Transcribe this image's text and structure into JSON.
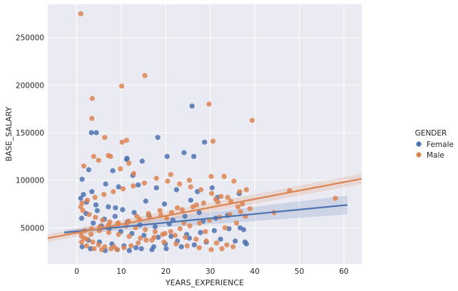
{
  "chart_data": {
    "type": "scatter",
    "xlabel": "YEARS_EXPERIENCE",
    "ylabel": "BASE_SALARY",
    "xlim": [
      -6.5,
      64
    ],
    "ylim": [
      12000,
      285000
    ],
    "xticks": [
      0,
      10,
      20,
      30,
      40,
      50,
      60
    ],
    "yticks": [
      50000,
      100000,
      150000,
      200000,
      250000
    ],
    "grid": true,
    "legend": {
      "title": "GENDER",
      "position": "right"
    },
    "colors": {
      "Female": "#4c72b0",
      "Male": "#dd8452",
      "background": "#eaeaf2",
      "grid": "#ffffff"
    },
    "series": [
      {
        "name": "Female",
        "points": [
          [
            18.2,
            145000
          ],
          [
            28.7,
            140000
          ],
          [
            25.9,
            178000
          ],
          [
            20.3,
            125000
          ],
          [
            24.1,
            129000
          ],
          [
            26.3,
            125000
          ],
          [
            12.6,
            105000
          ],
          [
            14.7,
            120000
          ],
          [
            11.2,
            122000
          ],
          [
            11.3,
            123000
          ],
          [
            8.1,
            110000
          ],
          [
            3.3,
            150000
          ],
          [
            4.4,
            150000
          ],
          [
            2.7,
            111000
          ],
          [
            1.2,
            101000
          ],
          [
            6.5,
            96000
          ],
          [
            9.4,
            93000
          ],
          [
            13.8,
            95000
          ],
          [
            17.9,
            92000
          ],
          [
            22.4,
            90000
          ],
          [
            27.1,
            88000
          ],
          [
            30.4,
            92000
          ],
          [
            36.5,
            86000
          ],
          [
            31.6,
            82000
          ],
          [
            25.6,
            79000
          ],
          [
            19.7,
            75000
          ],
          [
            15.5,
            78000
          ],
          [
            8.7,
            71000
          ],
          [
            4.6,
            68000
          ],
          [
            2.1,
            65000
          ],
          [
            1.1,
            60000
          ],
          [
            3.7,
            55000
          ],
          [
            5.5,
            52000
          ],
          [
            7.3,
            49000
          ],
          [
            9.9,
            46000
          ],
          [
            12.4,
            44000
          ],
          [
            15.1,
            42000
          ],
          [
            18.3,
            40000
          ],
          [
            21.2,
            41000
          ],
          [
            24.7,
            43000
          ],
          [
            27.8,
            45000
          ],
          [
            30.9,
            47000
          ],
          [
            34.2,
            49000
          ],
          [
            37.5,
            48000
          ],
          [
            38.1,
            33000
          ],
          [
            35.6,
            36000
          ],
          [
            32.3,
            38000
          ],
          [
            29.1,
            35000
          ],
          [
            26.4,
            32000
          ],
          [
            23.5,
            30000
          ],
          [
            20.1,
            28000
          ],
          [
            16.9,
            27000
          ],
          [
            13.3,
            29000
          ],
          [
            10.6,
            31000
          ],
          [
            7.9,
            33000
          ],
          [
            5.1,
            35000
          ],
          [
            2.6,
            37000
          ],
          [
            1.2,
            30000
          ],
          [
            3.1,
            28000
          ],
          [
            6.4,
            26000
          ],
          [
            9.1,
            27000
          ],
          [
            11.8,
            26000
          ],
          [
            14.5,
            28000
          ],
          [
            17.3,
            30000
          ],
          [
            19.9,
            33000
          ],
          [
            22.6,
            36000
          ],
          [
            25.3,
            39000
          ],
          [
            28.4,
            57000
          ],
          [
            31.2,
            60000
          ],
          [
            33.9,
            63000
          ],
          [
            36.7,
            50000
          ],
          [
            37.8,
            35000
          ],
          [
            21.6,
            58000
          ],
          [
            16.2,
            63000
          ],
          [
            12.9,
            66000
          ],
          [
            10.3,
            69000
          ],
          [
            7.1,
            72000
          ],
          [
            4.3,
            74000
          ],
          [
            2.2,
            77000
          ],
          [
            0.9,
            81000
          ],
          [
            1.5,
            85000
          ],
          [
            3.4,
            88000
          ],
          [
            6.2,
            59000
          ],
          [
            8.6,
            62000
          ],
          [
            11.4,
            56000
          ],
          [
            14.2,
            53000
          ],
          [
            17.6,
            51000
          ],
          [
            20.8,
            54000
          ],
          [
            24.3,
            62000
          ],
          [
            27.5,
            66000
          ]
        ]
      },
      {
        "name": "Male",
        "points": [
          [
            0.9,
            275000
          ],
          [
            15.3,
            210000
          ],
          [
            10.1,
            199000
          ],
          [
            3.5,
            186000
          ],
          [
            29.7,
            180000
          ],
          [
            3.4,
            165000
          ],
          [
            39.4,
            163000
          ],
          [
            6.3,
            145000
          ],
          [
            11.2,
            142000
          ],
          [
            10.2,
            140000
          ],
          [
            30.6,
            141000
          ],
          [
            3.8,
            125000
          ],
          [
            7.1,
            126000
          ],
          [
            7.6,
            125000
          ],
          [
            4.9,
            121000
          ],
          [
            11.7,
            118000
          ],
          [
            9.8,
            112000
          ],
          [
            1.6,
            115000
          ],
          [
            12.8,
            107000
          ],
          [
            21.1,
            106000
          ],
          [
            25.3,
            100000
          ],
          [
            30.2,
            104000
          ],
          [
            33.1,
            104000
          ],
          [
            35.3,
            99000
          ],
          [
            47.8,
            89000
          ],
          [
            58.1,
            81000
          ],
          [
            44.3,
            66000
          ],
          [
            38.1,
            90000
          ],
          [
            36.6,
            88000
          ],
          [
            33.9,
            82000
          ],
          [
            31.2,
            80000
          ],
          [
            28.5,
            76000
          ],
          [
            26.1,
            72000
          ],
          [
            23.7,
            69000
          ],
          [
            21.3,
            66000
          ],
          [
            18.9,
            63000
          ],
          [
            16.4,
            61000
          ],
          [
            14.1,
            59000
          ],
          [
            11.6,
            57000
          ],
          [
            9.3,
            55000
          ],
          [
            7.1,
            53000
          ],
          [
            5.2,
            51000
          ],
          [
            3.3,
            49000
          ],
          [
            1.8,
            47000
          ],
          [
            0.9,
            45000
          ],
          [
            1.1,
            41000
          ],
          [
            2.3,
            38000
          ],
          [
            3.6,
            35000
          ],
          [
            4.9,
            32000
          ],
          [
            6.3,
            30000
          ],
          [
            7.7,
            28000
          ],
          [
            9.1,
            27000
          ],
          [
            10.6,
            29000
          ],
          [
            12.2,
            31000
          ],
          [
            13.8,
            34000
          ],
          [
            15.6,
            37000
          ],
          [
            17.4,
            40000
          ],
          [
            19.3,
            43000
          ],
          [
            21.1,
            46000
          ],
          [
            23.2,
            49000
          ],
          [
            25.4,
            52000
          ],
          [
            27.6,
            55000
          ],
          [
            29.8,
            58000
          ],
          [
            32.1,
            61000
          ],
          [
            34.4,
            64000
          ],
          [
            36.8,
            67000
          ],
          [
            38.9,
            70000
          ],
          [
            37.2,
            75000
          ],
          [
            34.6,
            78000
          ],
          [
            32.4,
            83000
          ],
          [
            30.3,
            86000
          ],
          [
            27.9,
            90000
          ],
          [
            25.6,
            93000
          ],
          [
            23.1,
            96000
          ],
          [
            20.4,
            99000
          ],
          [
            17.9,
            102000
          ],
          [
            15.2,
            97000
          ],
          [
            12.7,
            94000
          ],
          [
            10.4,
            91000
          ],
          [
            8.2,
            88000
          ],
          [
            6.1,
            85000
          ],
          [
            4.1,
            82000
          ],
          [
            2.4,
            79000
          ],
          [
            1.2,
            76000
          ],
          [
            0.9,
            72000
          ],
          [
            1.4,
            68000
          ],
          [
            2.8,
            64000
          ],
          [
            4.2,
            61000
          ],
          [
            5.8,
            58000
          ],
          [
            7.4,
            56000
          ],
          [
            9.2,
            54000
          ],
          [
            11.1,
            52000
          ],
          [
            13.2,
            50000
          ],
          [
            15.4,
            48000
          ],
          [
            17.6,
            46000
          ],
          [
            19.8,
            44000
          ],
          [
            22.1,
            42000
          ],
          [
            24.4,
            40000
          ],
          [
            26.8,
            38000
          ],
          [
            29.1,
            36000
          ],
          [
            31.4,
            34000
          ],
          [
            33.7,
            32000
          ],
          [
            35.1,
            30000
          ],
          [
            32.6,
            28000
          ],
          [
            30.2,
            27000
          ],
          [
            27.5,
            29000
          ],
          [
            24.8,
            31000
          ],
          [
            22.3,
            33000
          ],
          [
            19.6,
            35000
          ],
          [
            16.9,
            37000
          ],
          [
            14.3,
            39000
          ],
          [
            11.8,
            41000
          ],
          [
            9.4,
            43000
          ],
          [
            7.2,
            45000
          ],
          [
            5.1,
            47000
          ],
          [
            3.2,
            43000
          ],
          [
            1.7,
            39000
          ],
          [
            1.1,
            35000
          ],
          [
            2.2,
            31000
          ],
          [
            3.9,
            28000
          ],
          [
            5.6,
            27000
          ],
          [
            8.4,
            30000
          ],
          [
            13.5,
            62000
          ],
          [
            16.1,
            65000
          ],
          [
            18.7,
            68000
          ],
          [
            22.6,
            71000
          ],
          [
            26.9,
            74000
          ],
          [
            31.7,
            77000
          ],
          [
            36.2,
            72000
          ],
          [
            37.9,
            62000
          ],
          [
            35.9,
            55000
          ],
          [
            33.3,
            50000
          ],
          [
            28.9,
            46000
          ],
          [
            24.1,
            55000
          ],
          [
            20.2,
            60000
          ]
        ]
      }
    ],
    "regression": [
      {
        "name": "Female",
        "x": [
          -2.8,
          60.8
        ],
        "y": [
          45000,
          74000
        ],
        "ci": [
          [
            43000,
            47500
          ],
          [
            64000,
            84000
          ]
        ]
      },
      {
        "name": "Male",
        "x": [
          -6.5,
          64
        ],
        "y": [
          39000,
          101500
        ],
        "ci": [
          [
            35000,
            43000
          ],
          [
            96000,
            107000
          ]
        ]
      }
    ]
  }
}
